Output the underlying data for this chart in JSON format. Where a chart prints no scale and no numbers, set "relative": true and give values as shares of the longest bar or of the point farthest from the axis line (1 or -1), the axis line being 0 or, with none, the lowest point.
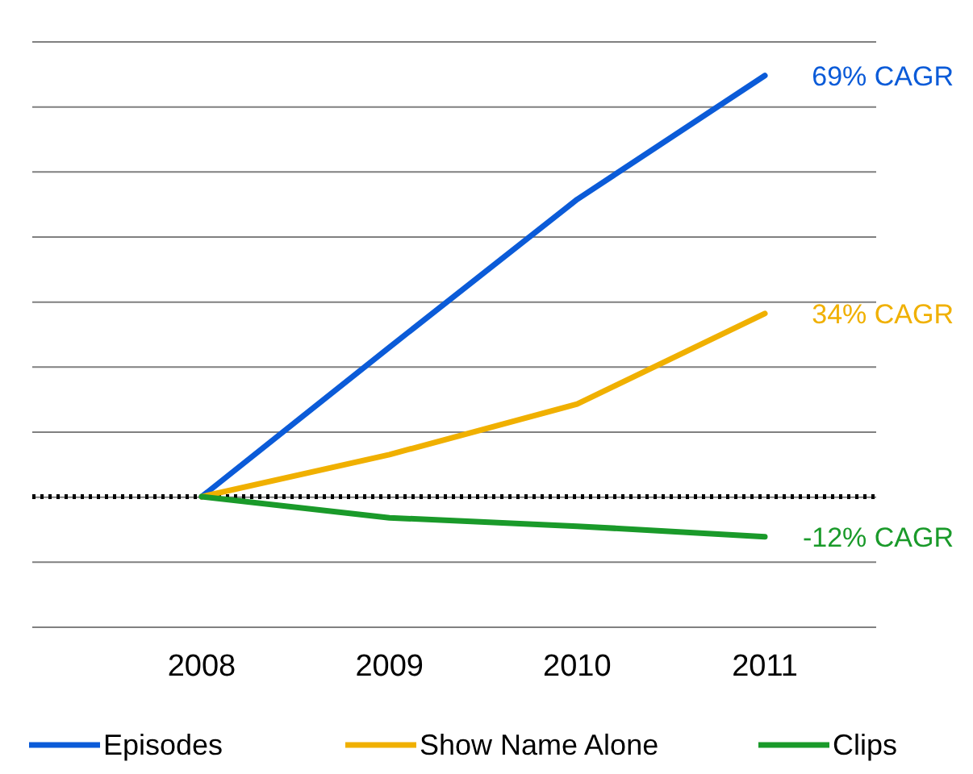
{
  "chart_data": {
    "type": "line",
    "relative": true,
    "categories": [
      "2008",
      "2009",
      "2010",
      "2011"
    ],
    "series": [
      {
        "name": "Episodes",
        "color": "#0b5bd8",
        "values": [
          0,
          0.355,
          0.706,
          1
        ]
      },
      {
        "name": "Show Name Alone",
        "color": "#f0b000",
        "values": [
          0,
          0.1,
          0.22,
          0.435
        ]
      },
      {
        "name": "Clips",
        "color": "#1a9a2a",
        "values": [
          0,
          -0.05,
          -0.07,
          -0.095
        ]
      }
    ],
    "annotations": [
      {
        "text": "69% CAGR",
        "x": "2011",
        "y": 1
      },
      {
        "text": "34% CAGR",
        "x": "2011",
        "y": 0.435
      },
      {
        "text": "-12% CAGR",
        "x": "2011",
        "y": -0.095
      }
    ],
    "ref_lines": [
      {
        "axis": "y",
        "value": 0,
        "line_style": "dotted",
        "color": "#000000"
      }
    ],
    "grid": "y",
    "legend": "bottom",
    "marker": "none",
    "line_style": "solid"
  }
}
